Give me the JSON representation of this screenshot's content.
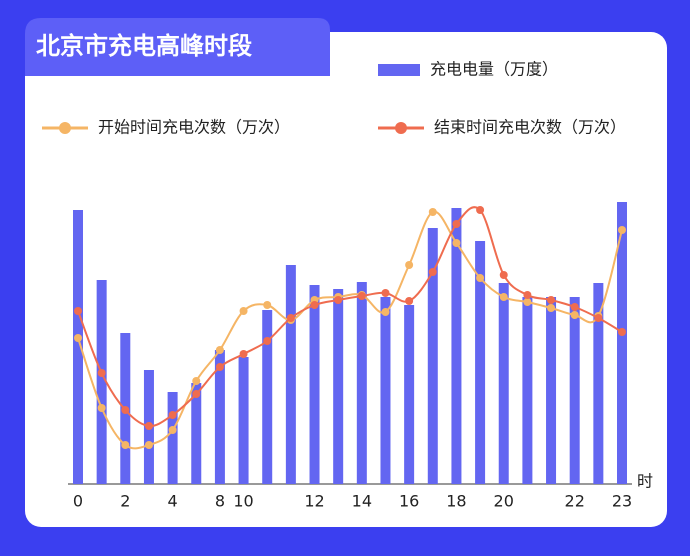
{
  "chart_data": {
    "type": "bar_line",
    "title": "北京市充电高峰时段",
    "x_unit": "时",
    "categories": [
      "0",
      null,
      "2",
      null,
      "4",
      null,
      "8",
      "10",
      null,
      null,
      "12",
      null,
      "14",
      null,
      "16",
      null,
      "18",
      null,
      "20",
      null,
      null,
      "22",
      null,
      "23"
    ],
    "ylim": [
      0,
      300
    ],
    "series": [
      {
        "name": "充电电量（万度）",
        "kind": "bar",
        "color": "#6366f1",
        "values": [
          274,
          204,
          151,
          114,
          92,
          101,
          134,
          127,
          174,
          219,
          199,
          195,
          202,
          187,
          179,
          256,
          276,
          243,
          201,
          187,
          187,
          187,
          201,
          282
        ]
      },
      {
        "name": "开始时间充电次数（万次）",
        "kind": "line",
        "color": "#f5b565",
        "values": [
          146,
          76,
          39,
          39,
          54,
          103,
          134,
          173,
          179,
          164,
          184,
          187,
          189,
          172,
          219,
          272,
          241,
          206,
          187,
          182,
          176,
          169,
          168,
          254
        ]
      },
      {
        "name": "结束时间充电次数（万次）",
        "kind": "line",
        "color": "#ef6c4f",
        "values": [
          173,
          111,
          74,
          58,
          69,
          90,
          117,
          130,
          143,
          166,
          179,
          184,
          188,
          191,
          183,
          212,
          260,
          274,
          209,
          189,
          184,
          177,
          166,
          152
        ]
      }
    ]
  }
}
